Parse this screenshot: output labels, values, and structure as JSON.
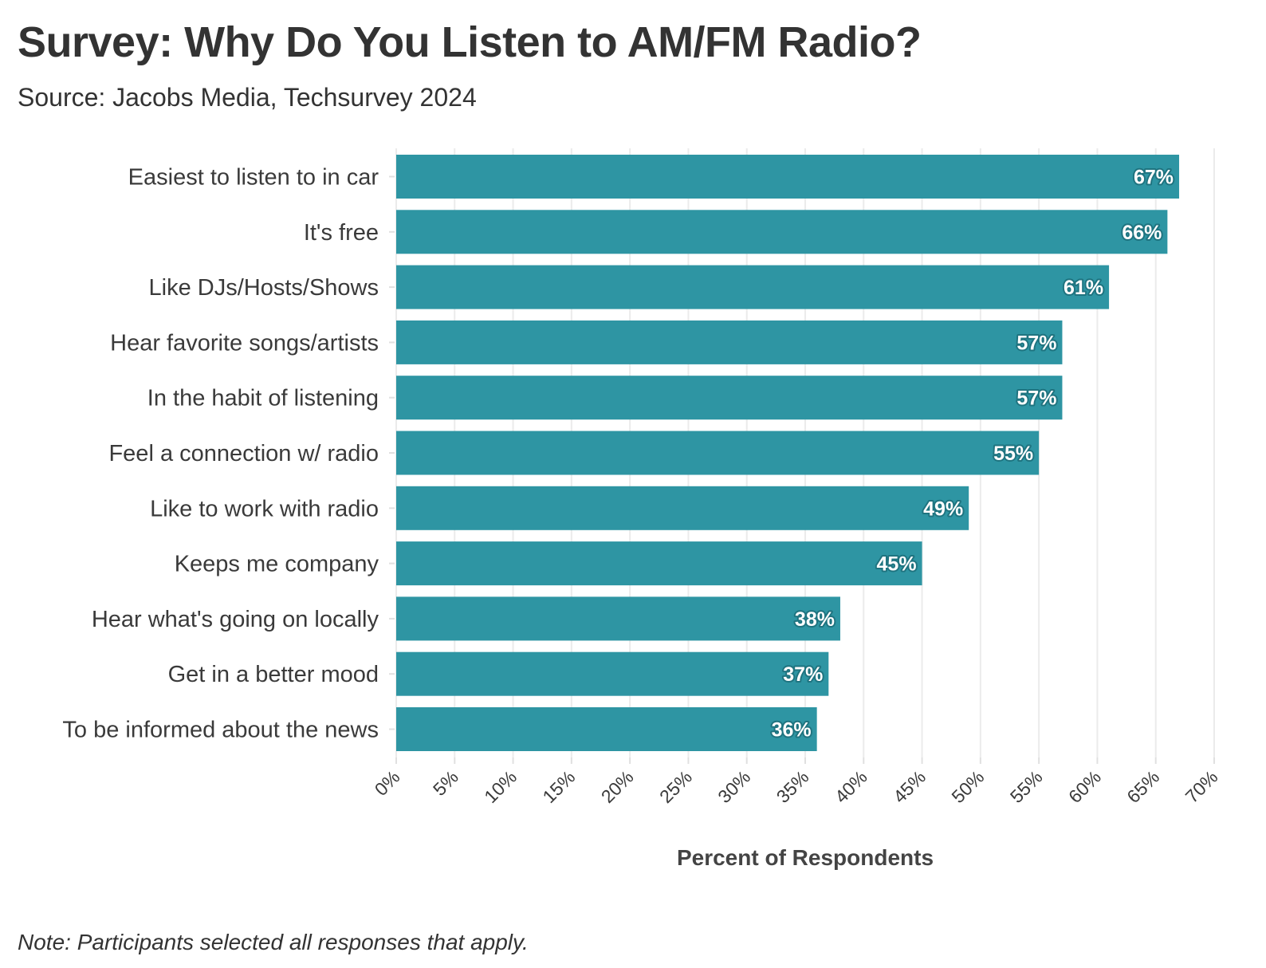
{
  "title": "Survey: Why Do You Listen to AM/FM Radio?",
  "subtitle": "Source: Jacobs Media, Techsurvey 2024",
  "note": "Note: Participants selected all responses that apply.",
  "colors": {
    "bar": "#2e95a3",
    "grid": "#ebebeb",
    "label_outline": "#1f7480"
  },
  "chart_data": {
    "type": "bar",
    "orientation": "horizontal",
    "categories": [
      "Easiest to listen to in car",
      "It's free",
      "Like DJs/Hosts/Shows",
      "Hear favorite songs/artists",
      "In the habit of listening",
      "Feel a connection w/ radio",
      "Like to work with radio",
      "Keeps me company",
      "Hear what's going on locally",
      "Get in a better mood",
      "To be informed about the news"
    ],
    "values": [
      67,
      66,
      61,
      57,
      57,
      55,
      49,
      45,
      38,
      37,
      36
    ],
    "data_labels": [
      "67%",
      "66%",
      "61%",
      "57%",
      "57%",
      "55%",
      "49%",
      "45%",
      "38%",
      "37%",
      "36%"
    ],
    "xlabel": "Percent of Respondents",
    "ylabel": "",
    "xlim": [
      0,
      70
    ],
    "x_ticks": [
      0,
      5,
      10,
      15,
      20,
      25,
      30,
      35,
      40,
      45,
      50,
      55,
      60,
      65,
      70
    ],
    "x_tick_labels": [
      "0%",
      "5%",
      "10%",
      "15%",
      "20%",
      "25%",
      "30%",
      "35%",
      "40%",
      "45%",
      "50%",
      "55%",
      "60%",
      "65%",
      "70%"
    ],
    "grid": "vertical",
    "legend": "none"
  }
}
